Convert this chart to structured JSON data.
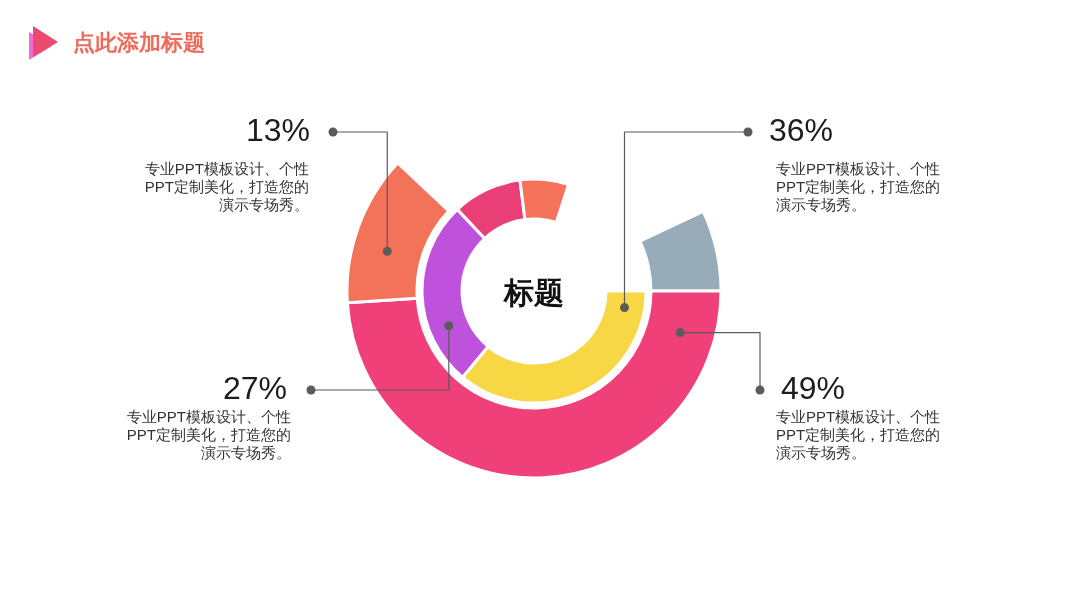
{
  "chart_data": [
    {
      "type": "donut",
      "title": "点此添加标题",
      "categories": [
        null,
        "专业PPT模板设计、个性PPT定制美化，打造您的演示专场秀。",
        "专业PPT模板设计、个性PPT定制美化，打造您的演示专场秀。"
      ],
      "values": [
        7,
        49,
        13
      ],
      "colors": [
        "#98abb8",
        "#f0407a",
        "#f3725a"
      ],
      "value_labels": [
        null,
        "49%",
        "13%"
      ]
    },
    {
      "type": "donut",
      "categories": [
        "专业PPT模板设计、个性PPT定制美化，打造您的演示专场秀。",
        "专业PPT模板设计、个性PPT定制美化，打造您的演示专场秀。",
        null,
        null
      ],
      "values": [
        36,
        27,
        10,
        7
      ],
      "colors": [
        "#f8d744",
        "#bf52dc",
        "#ea3f76",
        "#f4735a"
      ],
      "value_labels": [
        "36%",
        "27%",
        null,
        null
      ],
      "annotations": [
        "标题"
      ]
    }
  ]
}
